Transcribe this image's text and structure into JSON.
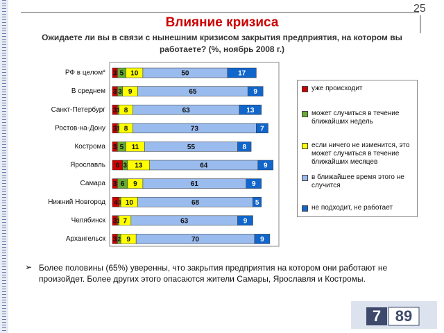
{
  "slide_number": "25",
  "chart_data": {
    "type": "stacked-bar-horizontal",
    "title": "Влияние кризиса",
    "subtitle": "Ожидаете ли вы в связи с нынешним кризисом закрытия предприятия, на котором вы работаете? (%, ноябрь 2008 г.)",
    "categories": [
      "РФ в целом*",
      "В среднем",
      "Санкт-Петербург",
      "Ростов-на-Дону",
      "Кострома",
      "Ярославль",
      "Самара",
      "Нижний Новгород",
      "Челябинск",
      "Архангельск"
    ],
    "xlim": [
      0,
      100
    ],
    "series": [
      {
        "name": "уже происходит",
        "color": "#cc0000",
        "values": [
          3,
          3,
          3,
          3,
          3,
          6,
          3,
          4,
          3,
          3
        ]
      },
      {
        "name": "может случиться в течение ближайших недель",
        "color": "#66aa33",
        "values": [
          5,
          3,
          1,
          1,
          5,
          3,
          6,
          1,
          1,
          2
        ]
      },
      {
        "name": "если ничего не изменится, это может случиться в течение ближайших месяцев",
        "color": "#ffff00",
        "values": [
          10,
          9,
          8,
          8,
          11,
          13,
          9,
          10,
          7,
          9
        ]
      },
      {
        "name": "в ближайшее время этого не случится",
        "color": "#99bbee",
        "values": [
          50,
          65,
          63,
          73,
          55,
          64,
          61,
          68,
          63,
          70
        ]
      },
      {
        "name": "не подходит, не работает",
        "color": "#1166cc",
        "values": [
          17,
          9,
          13,
          7,
          8,
          9,
          9,
          5,
          9,
          9
        ]
      }
    ],
    "legend": "right"
  },
  "bullet": "Более половины (65%) уверенны, что закрытия предприятия на котором они работают не произойдет.  Более других этого опасаются жители Самары, Ярославля и Костромы.",
  "logo": [
    "7",
    "89"
  ]
}
